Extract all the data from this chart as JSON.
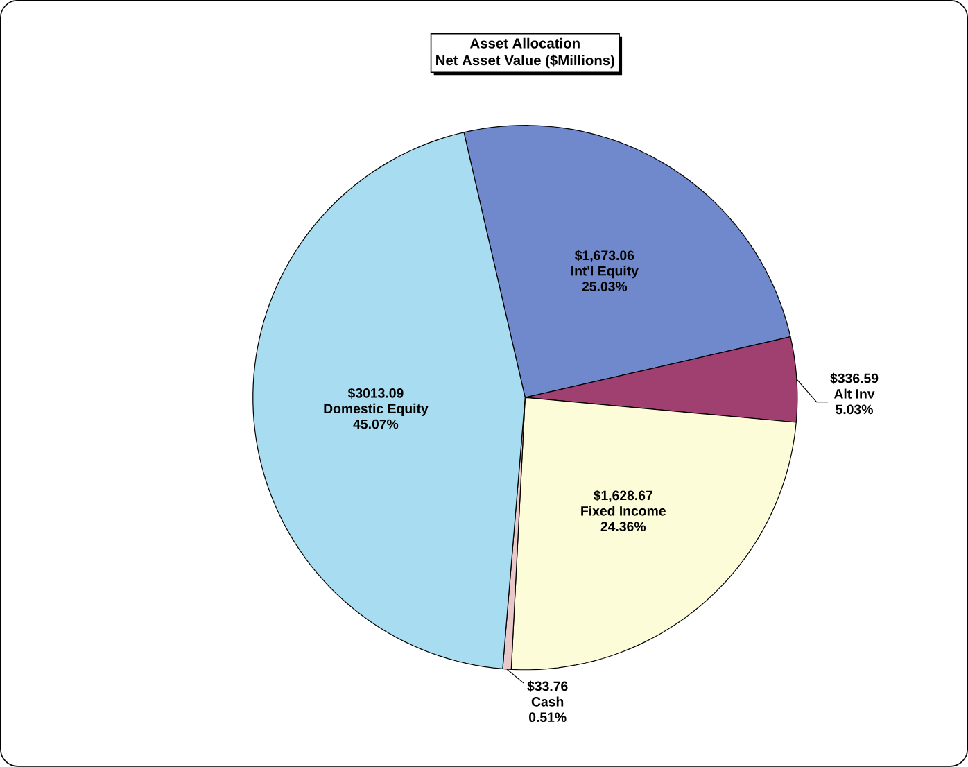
{
  "chart_data": {
    "type": "pie",
    "title": "Asset Allocation",
    "subtitle": "Net Asset Value ($Millions)",
    "categories": [
      "Int'l Equity",
      "Alt Inv",
      "Fixed Income",
      "Cash",
      "Domestic Equity"
    ],
    "values": [
      1673.06,
      336.59,
      1628.67,
      33.76,
      3013.09
    ],
    "value_labels": [
      "$1,673.06",
      "$336.59",
      "$1,628.67",
      "$33.76",
      "$3013.09"
    ],
    "annotations": [
      {
        "text": "25.03%",
        "x": "Int'l Equity"
      },
      {
        "text": "5.03%",
        "x": "Alt Inv"
      },
      {
        "text": "24.36%",
        "x": "Fixed Income"
      },
      {
        "text": "0.51%",
        "x": "Cash"
      },
      {
        "text": "45.07%",
        "x": "Domestic Equity"
      }
    ],
    "colors": [
      "#7088cc",
      "#a04070",
      "#fcfcd8",
      "#e8c8c8",
      "#a8dcf0"
    ]
  }
}
